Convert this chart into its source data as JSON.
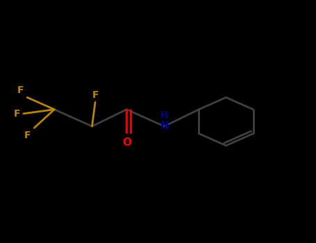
{
  "background_color": "#000000",
  "bond_color": "#404040",
  "F_color": "#B8860B",
  "N_color": "#00008B",
  "O_color": "#FF0000",
  "line_width": 2.0,
  "figsize": [
    4.55,
    3.5
  ],
  "dpi": 100,
  "xlim": [
    0.0,
    1.0
  ],
  "ylim": [
    0.0,
    1.0
  ]
}
